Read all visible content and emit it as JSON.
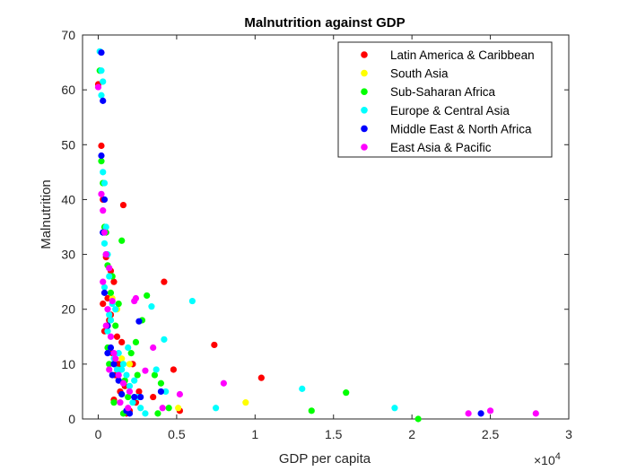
{
  "chart_data": {
    "type": "scatter",
    "title": "Malnutrition against GDP",
    "xlabel": "GDP per capita",
    "ylabel": "Malnutrition",
    "xlim": [
      -1000,
      30000
    ],
    "ylim": [
      0,
      70
    ],
    "x_tick_labels": [
      "0",
      "0.5",
      "1",
      "1.5",
      "2",
      "2.5",
      "3"
    ],
    "x_tick_values": [
      0,
      5000,
      10000,
      15000,
      20000,
      25000,
      30000
    ],
    "x_exponent_label": "×10",
    "x_exponent_power": "4",
    "y_tick_values": [
      0,
      10,
      20,
      30,
      40,
      50,
      60,
      70
    ],
    "y_tick_labels": [
      "0",
      "10",
      "20",
      "30",
      "40",
      "50",
      "60",
      "70"
    ],
    "grid": false,
    "legend_position": "top-right",
    "series": [
      {
        "name": "Latin America & Caribbean",
        "color": "#ff0000",
        "points": [
          [
            0,
            61
          ],
          [
            200,
            49.8
          ],
          [
            300,
            40
          ],
          [
            500,
            29.5
          ],
          [
            600,
            22
          ],
          [
            800,
            27
          ],
          [
            1000,
            25
          ],
          [
            1200,
            15
          ],
          [
            1600,
            39
          ],
          [
            1500,
            14
          ],
          [
            1300,
            10
          ],
          [
            1000,
            3.5
          ],
          [
            1800,
            1
          ],
          [
            2000,
            1.5
          ],
          [
            2200,
            10
          ],
          [
            2600,
            5
          ],
          [
            3500,
            4
          ],
          [
            4200,
            25
          ],
          [
            4800,
            9
          ],
          [
            5200,
            1.5
          ],
          [
            7400,
            13.5
          ],
          [
            10400,
            7.5
          ],
          [
            800,
            19
          ],
          [
            1100,
            8
          ],
          [
            1700,
            6
          ],
          [
            900,
            12
          ],
          [
            700,
            18
          ],
          [
            400,
            16
          ],
          [
            300,
            21
          ],
          [
            1400,
            5
          ],
          [
            2400,
            3
          ]
        ]
      },
      {
        "name": "South Asia",
        "color": "#ffff00",
        "points": [
          [
            900,
            22
          ],
          [
            2000,
            10
          ],
          [
            5100,
            2
          ],
          [
            9400,
            3
          ],
          [
            1200,
            20
          ],
          [
            1500,
            11
          ],
          [
            800,
            18
          ]
        ]
      },
      {
        "name": "Sub-Saharan Africa",
        "color": "#00ff00",
        "points": [
          [
            100,
            63.5
          ],
          [
            200,
            47
          ],
          [
            300,
            43
          ],
          [
            400,
            35
          ],
          [
            500,
            34
          ],
          [
            600,
            28
          ],
          [
            900,
            26
          ],
          [
            1300,
            21
          ],
          [
            1500,
            32.5
          ],
          [
            2400,
            14
          ],
          [
            3100,
            22.5
          ],
          [
            3600,
            8
          ],
          [
            4000,
            6.5
          ],
          [
            4500,
            2
          ],
          [
            3800,
            1
          ],
          [
            1900,
            4
          ],
          [
            1700,
            7
          ],
          [
            13600,
            1.5
          ],
          [
            15800,
            4.8
          ],
          [
            20400,
            0
          ],
          [
            1100,
            17
          ],
          [
            800,
            23
          ],
          [
            700,
            10
          ],
          [
            1400,
            9
          ],
          [
            2100,
            12
          ],
          [
            2800,
            18
          ],
          [
            1000,
            3
          ],
          [
            600,
            13
          ],
          [
            1600,
            1
          ],
          [
            2500,
            8
          ]
        ]
      },
      {
        "name": "Europe & Central Asia",
        "color": "#00ffff",
        "points": [
          [
            100,
            67
          ],
          [
            200,
            63.5
          ],
          [
            300,
            61.5
          ],
          [
            200,
            59
          ],
          [
            300,
            45
          ],
          [
            400,
            43
          ],
          [
            500,
            35
          ],
          [
            600,
            30
          ],
          [
            700,
            26
          ],
          [
            900,
            21
          ],
          [
            1100,
            20
          ],
          [
            1300,
            12
          ],
          [
            1500,
            9
          ],
          [
            1800,
            8
          ],
          [
            2000,
            6
          ],
          [
            2300,
            7
          ],
          [
            2500,
            4
          ],
          [
            3000,
            1
          ],
          [
            3400,
            20.5
          ],
          [
            4200,
            14.5
          ],
          [
            4300,
            5
          ],
          [
            6000,
            21.5
          ],
          [
            7500,
            2
          ],
          [
            13000,
            5.5
          ],
          [
            18900,
            2
          ],
          [
            400,
            24
          ],
          [
            600,
            16
          ],
          [
            800,
            18
          ],
          [
            1000,
            11
          ],
          [
            1200,
            9
          ],
          [
            1600,
            10
          ],
          [
            2200,
            3
          ],
          [
            2700,
            2
          ],
          [
            400,
            32
          ],
          [
            700,
            19
          ],
          [
            1900,
            13
          ],
          [
            3700,
            9
          ]
        ]
      },
      {
        "name": "Middle East & North Africa",
        "color": "#0000ff",
        "points": [
          [
            200,
            66.8
          ],
          [
            300,
            58
          ],
          [
            200,
            48
          ],
          [
            400,
            40
          ],
          [
            300,
            34
          ],
          [
            500,
            30
          ],
          [
            400,
            23
          ],
          [
            600,
            17
          ],
          [
            800,
            13
          ],
          [
            1000,
            10
          ],
          [
            1300,
            7
          ],
          [
            1500,
            4.5
          ],
          [
            2300,
            4
          ],
          [
            2600,
            17.8
          ],
          [
            2700,
            4
          ],
          [
            4000,
            5
          ],
          [
            2000,
            1
          ],
          [
            24400,
            1
          ],
          [
            600,
            12
          ],
          [
            900,
            8
          ],
          [
            1800,
            1.5
          ]
        ]
      },
      {
        "name": "East Asia & Pacific",
        "color": "#ff00ff",
        "points": [
          [
            0,
            60.5
          ],
          [
            200,
            41
          ],
          [
            300,
            38
          ],
          [
            400,
            34
          ],
          [
            500,
            30
          ],
          [
            700,
            27.5
          ],
          [
            900,
            21.5
          ],
          [
            1100,
            11
          ],
          [
            1300,
            8
          ],
          [
            1600,
            6.5
          ],
          [
            2000,
            5
          ],
          [
            2400,
            22
          ],
          [
            3000,
            8.8
          ],
          [
            3500,
            13
          ],
          [
            4100,
            2
          ],
          [
            5200,
            4.5
          ],
          [
            8000,
            6.5
          ],
          [
            23600,
            1
          ],
          [
            25000,
            1.5
          ],
          [
            27900,
            1
          ],
          [
            300,
            25
          ],
          [
            600,
            20
          ],
          [
            800,
            15
          ],
          [
            1000,
            12
          ],
          [
            1400,
            3
          ],
          [
            1900,
            2
          ],
          [
            2300,
            21.5
          ],
          [
            500,
            17
          ],
          [
            700,
            9
          ]
        ]
      }
    ]
  }
}
